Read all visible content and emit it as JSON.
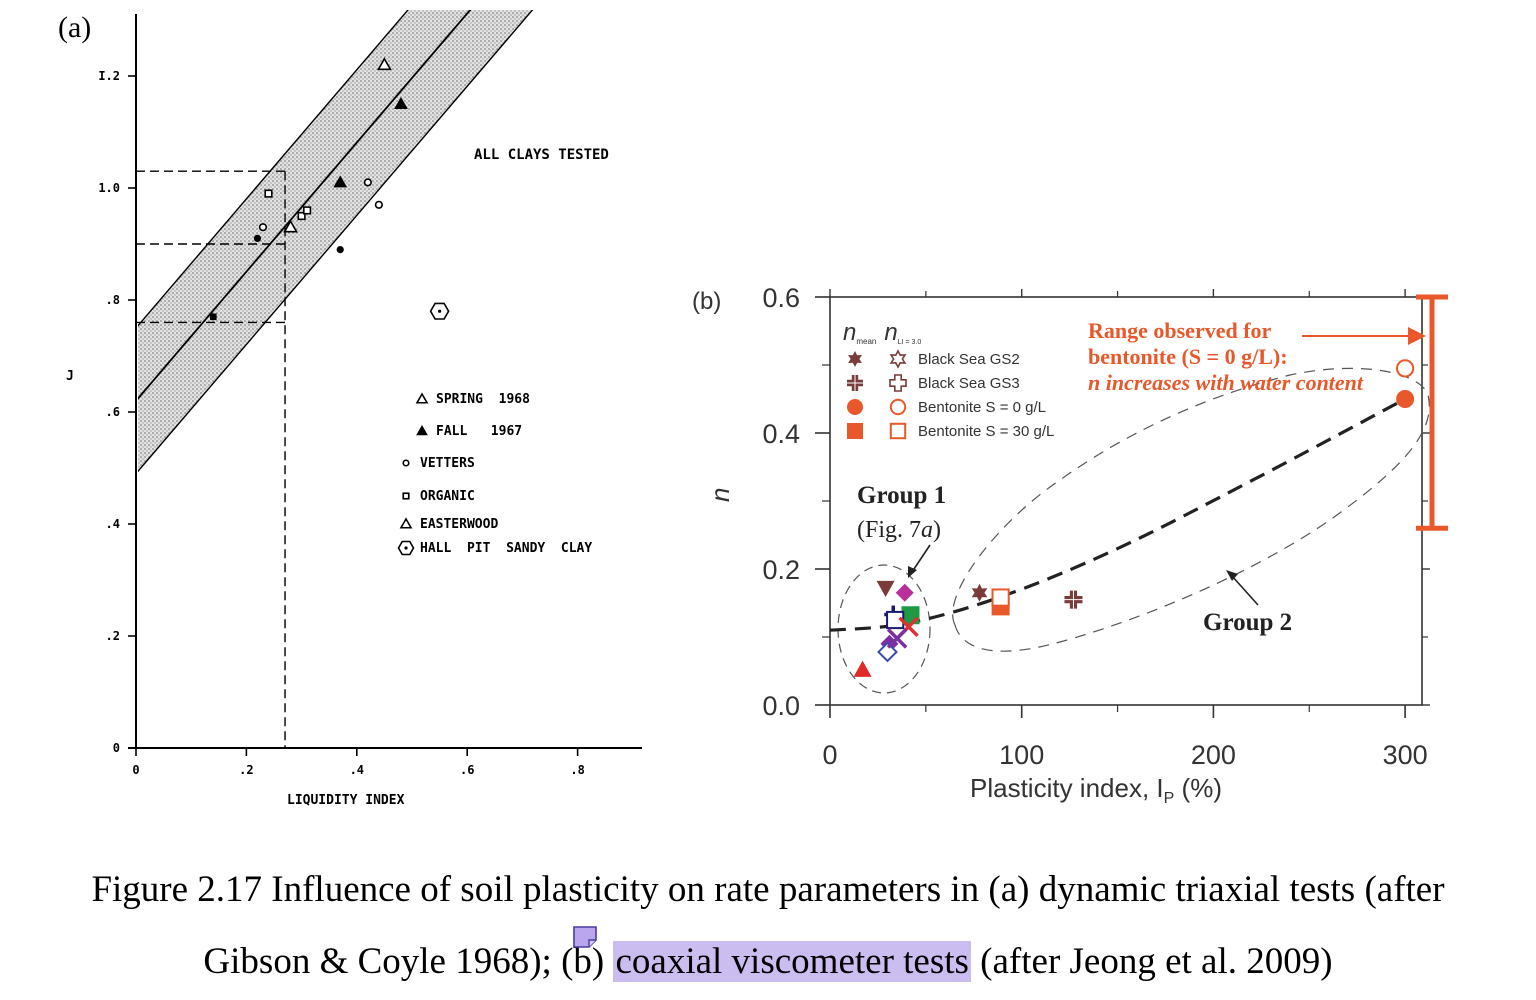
{
  "panels": {
    "a": {
      "label": "(a)"
    },
    "b": {
      "label": "(b)"
    }
  },
  "caption": {
    "line1": "Figure 2.17 Influence of soil plasticity on rate parameters in (a) dynamic triaxial tests (after",
    "line2_before": "Gibson & Coyle 1968); (b) ",
    "line2_highlight": "coaxial viscometer tests",
    "line2_after": " (after Jeong et al. 2009)",
    "highlight_color": "#cbbdf0"
  },
  "chart_data": [
    {
      "type": "scatter",
      "panel": "(a)",
      "title": "ALL CLAYS TESTED",
      "xlabel": "LIQUIDITY INDEX",
      "ylabel": "J",
      "xlim": [
        0,
        0.9
      ],
      "ylim": [
        0,
        1.3
      ],
      "x_ticks": [
        0,
        0.2,
        0.4,
        0.6,
        0.8
      ],
      "x_tick_labels": [
        "0",
        ".2",
        ".4",
        ".6",
        ".8"
      ],
      "y_ticks": [
        0,
        0.2,
        0.4,
        0.6,
        0.8,
        1.0,
        1.2
      ],
      "y_tick_labels": [
        "0",
        ".2",
        ".4",
        ".6",
        ".8",
        "1.0",
        "I.2"
      ],
      "band": {
        "center_line": [
          [
            0,
            0.62
          ],
          [
            0.72,
            1.45
          ]
        ],
        "half_width_j": 0.13
      },
      "reference_lines": [
        {
          "x": 0.27,
          "ys": [
            0.76,
            0.9,
            1.03
          ]
        }
      ],
      "legend": [
        {
          "marker": "open-triangle",
          "label": "SPRING  1968"
        },
        {
          "marker": "filled-triangle",
          "label": "FALL   1967"
        },
        {
          "marker": "open-circle",
          "label": "VETTERS"
        },
        {
          "marker": "open-square",
          "label": "ORGANIC"
        },
        {
          "marker": "open-triangle",
          "label": "EASTERWOOD"
        },
        {
          "marker": "circled-dot",
          "label": "HALL  PIT  SANDY  CLAY"
        }
      ],
      "series": [
        {
          "marker": "open-triangle",
          "points": [
            [
              0.28,
              0.93
            ],
            [
              0.45,
              1.22
            ]
          ]
        },
        {
          "marker": "filled-triangle",
          "points": [
            [
              0.37,
              1.01
            ],
            [
              0.48,
              1.15
            ]
          ]
        },
        {
          "marker": "open-circle",
          "points": [
            [
              0.23,
              0.93
            ],
            [
              0.42,
              1.01
            ],
            [
              0.44,
              0.97
            ]
          ]
        },
        {
          "marker": "open-square",
          "points": [
            [
              0.24,
              0.99
            ],
            [
              0.3,
              0.95
            ],
            [
              0.31,
              0.96
            ]
          ]
        },
        {
          "marker": "filled-circle",
          "points": [
            [
              0.22,
              0.91
            ],
            [
              0.37,
              0.89
            ]
          ]
        },
        {
          "marker": "filled-square",
          "points": [
            [
              0.14,
              0.77
            ]
          ]
        },
        {
          "marker": "circled-dot",
          "points": [
            [
              0.55,
              0.78
            ]
          ]
        }
      ]
    },
    {
      "type": "scatter",
      "panel": "(b)",
      "xlabel": "Plasticity index, I",
      "xlabel_sub": "P",
      "xlabel_unit": " (%)",
      "ylabel": "n",
      "xlim": [
        0,
        310
      ],
      "ylim": [
        0,
        0.6
      ],
      "x_ticks": [
        0,
        100,
        200,
        300
      ],
      "y_ticks": [
        0.0,
        0.2,
        0.4,
        0.6
      ],
      "y_tick_labels": [
        "0.0",
        "0.2",
        "0.4",
        "0.6"
      ],
      "legend_header": {
        "a": "n",
        "a_sub": "mean",
        "b": "n",
        "b_sub": "LI = 3.0"
      },
      "legend": [
        {
          "label": "Black Sea GS2",
          "color": "#7a3b3b",
          "filled": "star",
          "open": "star"
        },
        {
          "label": "Black Sea GS3",
          "color": "#7a3b3b",
          "filled": "cross",
          "open": "cross"
        },
        {
          "label": "Bentonite S = 0 g/L",
          "color": "#e8582a",
          "filled": "circle",
          "open": "circle"
        },
        {
          "label": "Bentonite S = 30 g/L",
          "color": "#e8582a",
          "filled": "square",
          "open": "square"
        }
      ],
      "annotations": {
        "range_lines": [
          "Range observed for",
          "bentonite (S = 0 g/L):",
          "n increases with water content"
        ],
        "range_n": [
          0.26,
          0.6
        ],
        "group1_title": "Group 1",
        "group1_ref_a": "(Fig. 7",
        "group1_ref_b": "a",
        "group1_ref_c": ")",
        "group2": "Group 2"
      },
      "trend_curve": [
        [
          0,
          0.11
        ],
        [
          40,
          0.12
        ],
        [
          90,
          0.16
        ],
        [
          150,
          0.23
        ],
        [
          220,
          0.33
        ],
        [
          300,
          0.45
        ]
      ],
      "series": [
        {
          "name": "Black Sea GS2",
          "marker": "filled-star",
          "color": "#7a3b3b",
          "points": [
            [
              78,
              0.165
            ]
          ]
        },
        {
          "name": "Black Sea GS3",
          "marker": "filled-cross",
          "color": "#7a3b3b",
          "points": [
            [
              127,
              0.155
            ]
          ]
        },
        {
          "name": "Bentonite S = 0 g/L",
          "marker": "filled-circle",
          "color": "#e8582a",
          "points": [
            [
              300,
              0.45
            ]
          ]
        },
        {
          "name": "Bentonite S = 0 g/L",
          "marker": "open-circle",
          "color": "#e8582a",
          "points": [
            [
              300,
              0.495
            ]
          ]
        },
        {
          "name": "Bentonite S = 30 g/L",
          "marker": "filled-square",
          "color": "#e8582a",
          "points": [
            [
              89,
              0.145
            ]
          ]
        },
        {
          "name": "Bentonite S = 30 g/L",
          "marker": "open-square",
          "color": "#e8582a",
          "points": [
            [
              89,
              0.158
            ]
          ]
        },
        {
          "marker": "filled-triangle-down",
          "color": "#7a3b3b",
          "points": [
            [
              29,
              0.172
            ]
          ]
        },
        {
          "marker": "filled-diamond",
          "color": "#b8309a",
          "points": [
            [
              39,
              0.165
            ]
          ]
        },
        {
          "marker": "cross",
          "color": "#1a1a6e",
          "points": [
            [
              33,
              0.133
            ]
          ]
        },
        {
          "marker": "filled-square",
          "color": "#1e9a45",
          "points": [
            [
              42,
              0.132
            ]
          ]
        },
        {
          "marker": "open-square",
          "color": "#1a1a6e",
          "points": [
            [
              34,
              0.125
            ]
          ]
        },
        {
          "marker": "x",
          "color": "#e03030",
          "points": [
            [
              41,
              0.115
            ]
          ]
        },
        {
          "marker": "filled-diamond",
          "color": "#7b2fa0",
          "points": [
            [
              31,
              0.09
            ]
          ]
        },
        {
          "marker": "open-diamond",
          "color": "#3a4ab0",
          "points": [
            [
              30,
              0.078
            ]
          ]
        },
        {
          "marker": "x",
          "color": "#7b2fa0",
          "points": [
            [
              35,
              0.098
            ]
          ]
        },
        {
          "marker": "filled-triangle",
          "color": "#e02a2a",
          "points": [
            [
              17,
              0.052
            ]
          ]
        }
      ]
    }
  ]
}
